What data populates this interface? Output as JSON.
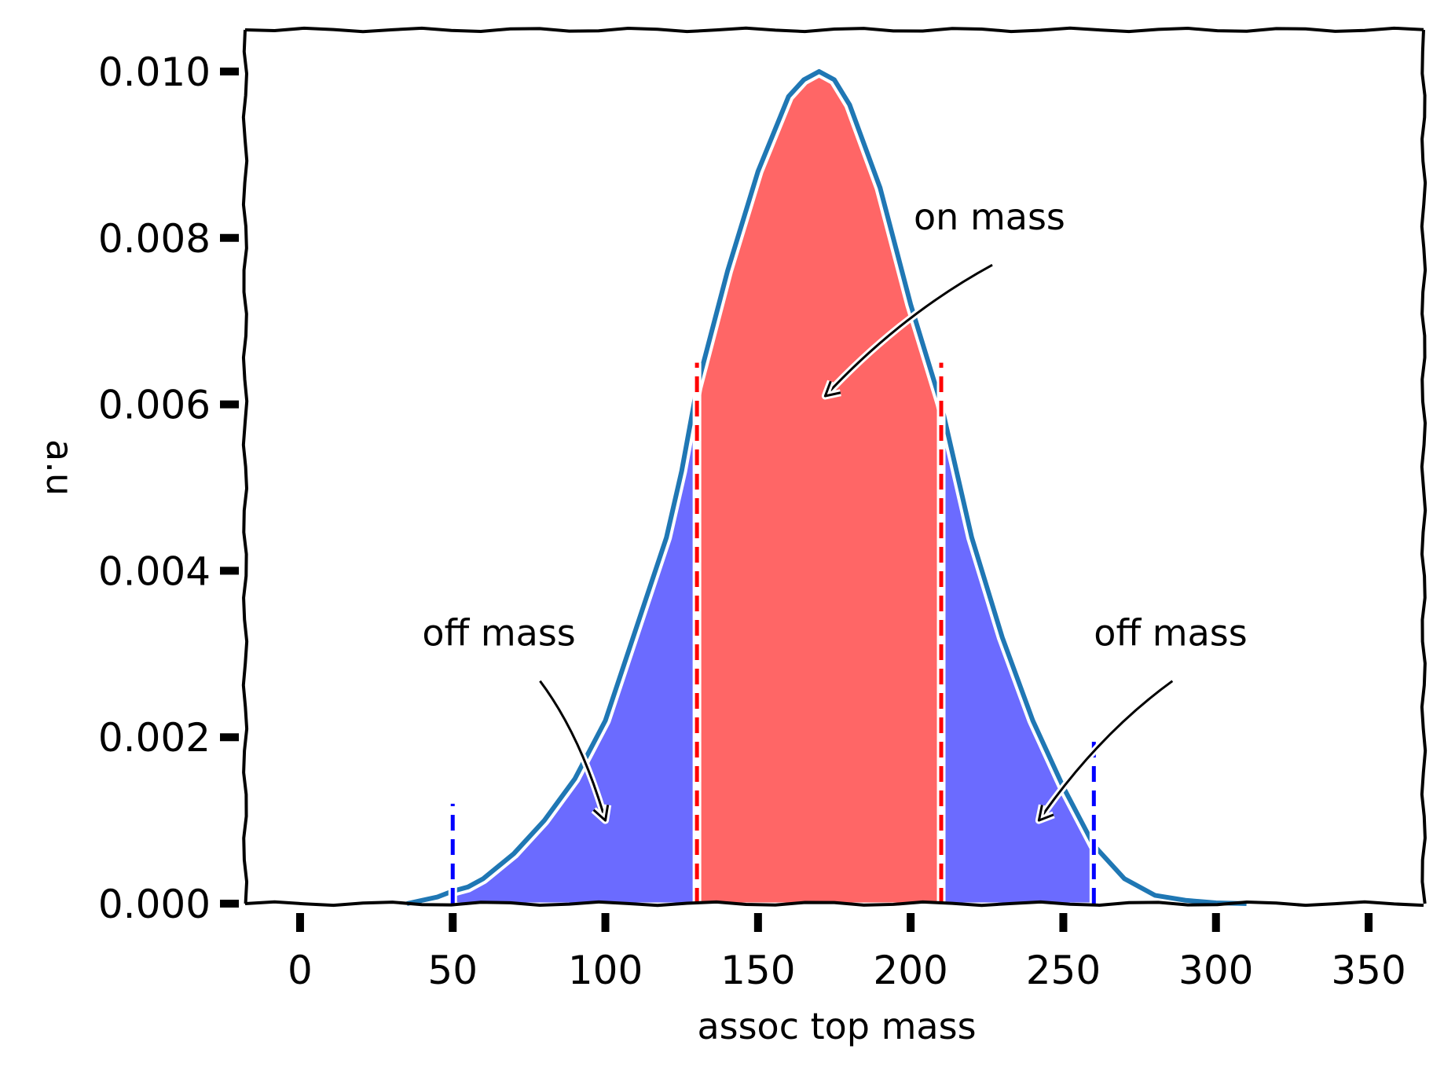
{
  "chart_data": {
    "type": "area",
    "style": "xkcd",
    "title": "",
    "xlabel": "assoc top mass",
    "ylabel": "a.u",
    "xlim": [
      -18,
      368
    ],
    "ylim": [
      0,
      0.0105
    ],
    "x_ticks": [
      0,
      50,
      100,
      150,
      200,
      250,
      300,
      350
    ],
    "x_tick_labels": [
      "0",
      "50",
      "100",
      "150",
      "200",
      "250",
      "300",
      "350"
    ],
    "y_ticks": [
      0.0,
      0.002,
      0.004,
      0.006,
      0.008,
      0.01
    ],
    "y_tick_labels": [
      "0.000",
      "0.002",
      "0.004",
      "0.006",
      "0.008",
      "0.010"
    ],
    "grid": false,
    "legend": "none",
    "distribution": {
      "x": [
        35,
        45,
        50,
        55,
        60,
        70,
        80,
        90,
        100,
        110,
        120,
        125,
        130,
        140,
        150,
        160,
        165,
        170,
        175,
        180,
        190,
        200,
        210,
        215,
        220,
        230,
        240,
        250,
        260,
        270,
        280,
        290,
        300,
        310
      ],
      "y": [
        0.0,
        8e-05,
        0.00015,
        0.0002,
        0.0003,
        0.0006,
        0.001,
        0.0015,
        0.0022,
        0.0033,
        0.0044,
        0.0052,
        0.0062,
        0.0076,
        0.0088,
        0.0097,
        0.0099,
        0.01,
        0.0099,
        0.0096,
        0.0086,
        0.0072,
        0.006,
        0.0052,
        0.0044,
        0.0032,
        0.0022,
        0.0014,
        0.0007,
        0.0003,
        0.0001,
        4e-05,
        1e-05,
        0.0
      ],
      "line_color": "#1f77b4"
    },
    "regions": [
      {
        "name": "off mass",
        "x_range": [
          50,
          130
        ],
        "color": "#6b6bff"
      },
      {
        "name": "on mass",
        "x_range": [
          130,
          210
        ],
        "color": "#ff6666"
      },
      {
        "name": "off mass",
        "x_range": [
          210,
          260
        ],
        "color": "#6b6bff"
      }
    ],
    "boundaries": [
      {
        "x": 50,
        "y_top": 0.0012,
        "color": "#0000ff"
      },
      {
        "x": 130,
        "y_top": 0.0065,
        "color": "#ff0000"
      },
      {
        "x": 210,
        "y_top": 0.0065,
        "color": "#ff0000"
      },
      {
        "x": 260,
        "y_top": 0.002,
        "color": "#0000ff"
      }
    ],
    "annotations": [
      {
        "text": "on mass",
        "text_xy": [
          201,
          0.0081
        ],
        "arrow_to": [
          172,
          0.0061
        ]
      },
      {
        "text": "off mass",
        "text_xy": [
          40,
          0.0031
        ],
        "arrow_to": [
          100,
          0.001
        ]
      },
      {
        "text": "off mass",
        "text_xy": [
          260,
          0.0031
        ],
        "arrow_to": [
          242,
          0.001
        ]
      }
    ]
  }
}
